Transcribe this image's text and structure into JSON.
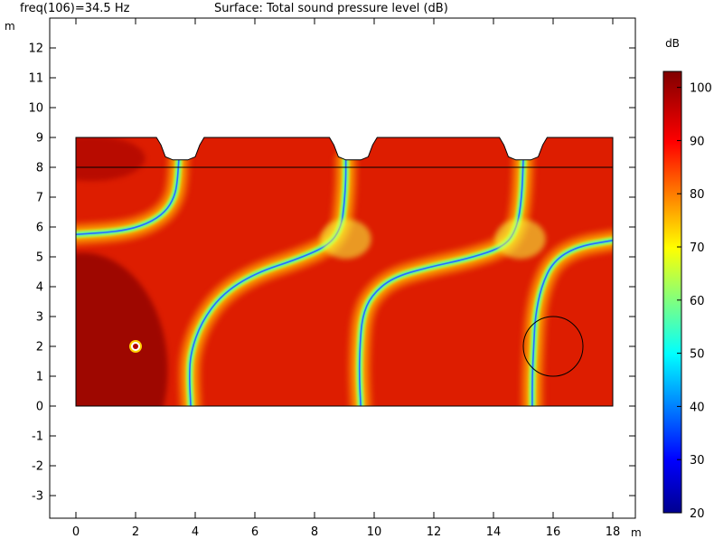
{
  "header": {
    "left_label": "freq(106)=34.5 Hz",
    "title": "Surface: Total sound pressure level (dB)"
  },
  "chart_data": {
    "type": "heatmap",
    "title": "Surface: Total sound pressure level (dB)",
    "subtitle": "freq(106)=34.5 Hz",
    "x_unit": "m",
    "y_unit": "m",
    "xlim": [
      -0.8,
      18.8
    ],
    "ylim": [
      -3.8,
      13
    ],
    "x_ticks": [
      0,
      2,
      4,
      6,
      8,
      10,
      12,
      14,
      16,
      18
    ],
    "y_ticks": [
      -3,
      -2,
      -1,
      0,
      1,
      2,
      3,
      4,
      5,
      6,
      7,
      8,
      9,
      10,
      11,
      12
    ],
    "colorbar": {
      "unit": "dB",
      "range": [
        20,
        103
      ],
      "ticks": [
        20,
        30,
        40,
        50,
        60,
        70,
        80,
        90,
        100
      ],
      "colormap": [
        "#00008f",
        "#0000ff",
        "#00ffff",
        "#ffff00",
        "#ff0000",
        "#800000"
      ]
    },
    "domain": {
      "x_range": [
        0,
        18
      ],
      "y_range": [
        0,
        9
      ],
      "outline": [
        [
          0,
          0
        ],
        [
          18,
          0
        ],
        [
          18,
          9
        ],
        [
          15.8,
          9
        ],
        [
          15.65,
          8.75
        ],
        [
          15.5,
          8.35
        ],
        [
          15.25,
          8.25
        ],
        [
          14.75,
          8.25
        ],
        [
          14.5,
          8.35
        ],
        [
          14.35,
          8.75
        ],
        [
          14.2,
          9
        ],
        [
          10.1,
          9
        ],
        [
          9.95,
          8.75
        ],
        [
          9.8,
          8.35
        ],
        [
          9.55,
          8.25
        ],
        [
          9.05,
          8.25
        ],
        [
          8.8,
          8.35
        ],
        [
          8.65,
          8.75
        ],
        [
          8.5,
          9
        ],
        [
          4.3,
          9
        ],
        [
          4.15,
          8.75
        ],
        [
          4.0,
          8.35
        ],
        [
          3.75,
          8.25
        ],
        [
          3.25,
          8.25
        ],
        [
          3.0,
          8.35
        ],
        [
          2.85,
          8.75
        ],
        [
          2.7,
          9
        ],
        [
          0,
          9
        ]
      ],
      "divider_y": 8,
      "circle": {
        "cx": 16,
        "cy": 2,
        "r": 1
      },
      "source": {
        "x": 2,
        "y": 2
      }
    },
    "nodal_lines": [
      [
        [
          0,
          5.75
        ],
        [
          1.5,
          5.85
        ],
        [
          2.4,
          6.1
        ],
        [
          3.0,
          6.5
        ],
        [
          3.3,
          7.0
        ],
        [
          3.4,
          7.5
        ],
        [
          3.45,
          8.25
        ]
      ],
      [
        [
          3.85,
          0
        ],
        [
          3.8,
          1
        ],
        [
          3.85,
          1.8
        ],
        [
          4.2,
          2.8
        ],
        [
          4.9,
          3.75
        ],
        [
          6.0,
          4.45
        ],
        [
          7.5,
          4.95
        ],
        [
          8.5,
          5.4
        ],
        [
          8.9,
          6.0
        ],
        [
          9.0,
          6.8
        ],
        [
          9.05,
          7.6
        ],
        [
          9.05,
          8.25
        ]
      ],
      [
        [
          9.55,
          0
        ],
        [
          9.5,
          1
        ],
        [
          9.52,
          2
        ],
        [
          9.6,
          3
        ],
        [
          9.9,
          3.7
        ],
        [
          10.6,
          4.3
        ],
        [
          11.8,
          4.65
        ],
        [
          13.2,
          4.95
        ],
        [
          14.4,
          5.35
        ],
        [
          14.8,
          6.0
        ],
        [
          14.95,
          7.0
        ],
        [
          15.0,
          8.25
        ]
      ],
      [
        [
          15.3,
          0
        ],
        [
          15.3,
          1
        ],
        [
          15.35,
          2
        ],
        [
          15.4,
          3
        ],
        [
          15.6,
          4.0
        ],
        [
          16.0,
          4.85
        ],
        [
          16.8,
          5.35
        ],
        [
          18,
          5.55
        ]
      ]
    ]
  }
}
